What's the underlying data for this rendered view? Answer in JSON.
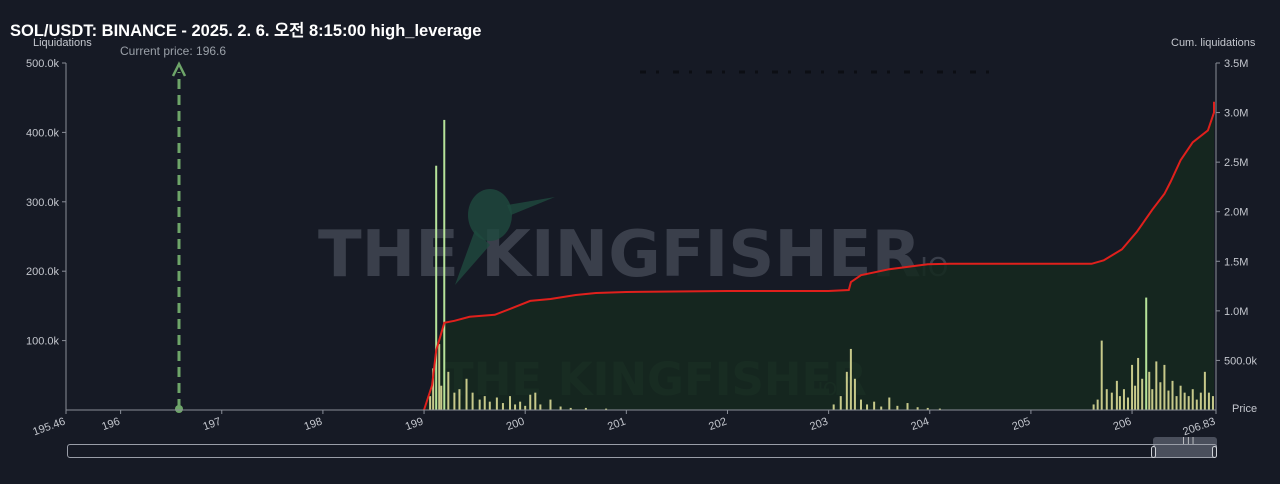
{
  "header": {
    "title": "SOL/USDT: BINANCE - 2025. 2. 6. 오전 8:15:00 high_leverage",
    "left_axis_title": "Liquidations",
    "right_axis_title": "Cum. liquidations",
    "current_price_label": "Current price: 196.6",
    "price_axis_label": "Price"
  },
  "watermark": {
    "text_main": "THE KINGFISHER",
    "text_suffix": ".IO",
    "icon": "kingfisher-bird-icon"
  },
  "colors": {
    "background": "#161a25",
    "cumulative_line": "#e0201c",
    "area_fill": "#15291e",
    "bar": "#c7c98a",
    "bar_highlight": "#b6e39a",
    "current_price": "#6ea569",
    "axis": "#8a8e98"
  },
  "chart_data": {
    "type": "bar",
    "x_axis": {
      "label": "Price",
      "range": [
        195.46,
        206.83
      ],
      "tick_labels": [
        "195.46",
        "196",
        "197",
        "198",
        "199",
        "200",
        "201",
        "202",
        "203",
        "204",
        "205",
        "206",
        "206.83"
      ]
    },
    "left_axis": {
      "label": "Liquidations",
      "range": [
        0,
        500000
      ],
      "tick_labels": [
        "100.0k",
        "200.0k",
        "300.0k",
        "400.0k",
        "500.0k"
      ]
    },
    "right_axis": {
      "label": "Cum. liquidations",
      "range": [
        0,
        3500000
      ],
      "tick_labels": [
        "500.0k",
        "1.0M",
        "1.5M",
        "2.0M",
        "2.5M",
        "3.0M",
        "3.5M"
      ]
    },
    "current_price": 196.6,
    "grid": false,
    "series": [
      {
        "name": "Liquidations",
        "kind": "bar",
        "points": [
          [
            199.06,
            20000
          ],
          [
            199.09,
            60000
          ],
          [
            199.12,
            352000
          ],
          [
            199.15,
            95000
          ],
          [
            199.17,
            35000
          ],
          [
            199.2,
            418000
          ],
          [
            199.24,
            55000
          ],
          [
            199.3,
            25000
          ],
          [
            199.35,
            30000
          ],
          [
            199.42,
            45000
          ],
          [
            199.48,
            25000
          ],
          [
            199.55,
            15000
          ],
          [
            199.6,
            20000
          ],
          [
            199.65,
            12000
          ],
          [
            199.72,
            18000
          ],
          [
            199.78,
            10000
          ],
          [
            199.85,
            20000
          ],
          [
            199.9,
            8000
          ],
          [
            199.95,
            12000
          ],
          [
            200.0,
            6000
          ],
          [
            200.05,
            22000
          ],
          [
            200.1,
            25000
          ],
          [
            200.15,
            8000
          ],
          [
            200.25,
            15000
          ],
          [
            200.35,
            5000
          ],
          [
            200.45,
            3000
          ],
          [
            200.6,
            3000
          ],
          [
            200.8,
            2000
          ],
          [
            203.05,
            8000
          ],
          [
            203.12,
            20000
          ],
          [
            203.18,
            55000
          ],
          [
            203.22,
            88000
          ],
          [
            203.26,
            45000
          ],
          [
            203.32,
            15000
          ],
          [
            203.38,
            8000
          ],
          [
            203.45,
            12000
          ],
          [
            203.52,
            5000
          ],
          [
            203.6,
            18000
          ],
          [
            203.68,
            6000
          ],
          [
            203.78,
            10000
          ],
          [
            203.88,
            4000
          ],
          [
            203.98,
            3000
          ],
          [
            204.1,
            2000
          ],
          [
            205.62,
            8000
          ],
          [
            205.66,
            15000
          ],
          [
            205.7,
            100000
          ],
          [
            205.75,
            30000
          ],
          [
            205.8,
            25000
          ],
          [
            205.85,
            42000
          ],
          [
            205.88,
            20000
          ],
          [
            205.92,
            30000
          ],
          [
            205.96,
            18000
          ],
          [
            206.0,
            65000
          ],
          [
            206.03,
            35000
          ],
          [
            206.06,
            75000
          ],
          [
            206.1,
            45000
          ],
          [
            206.14,
            162000
          ],
          [
            206.17,
            55000
          ],
          [
            206.2,
            30000
          ],
          [
            206.24,
            70000
          ],
          [
            206.28,
            40000
          ],
          [
            206.32,
            65000
          ],
          [
            206.36,
            28000
          ],
          [
            206.4,
            42000
          ],
          [
            206.44,
            20000
          ],
          [
            206.48,
            35000
          ],
          [
            206.52,
            25000
          ],
          [
            206.56,
            20000
          ],
          [
            206.6,
            30000
          ],
          [
            206.64,
            15000
          ],
          [
            206.68,
            25000
          ],
          [
            206.72,
            55000
          ],
          [
            206.76,
            25000
          ],
          [
            206.8,
            20000
          ]
        ]
      },
      {
        "name": "Cum. liquidations",
        "kind": "line",
        "points": [
          [
            199.0,
            0
          ],
          [
            199.08,
            250000
          ],
          [
            199.12,
            600000
          ],
          [
            199.2,
            880000
          ],
          [
            199.3,
            900000
          ],
          [
            199.45,
            940000
          ],
          [
            199.7,
            960000
          ],
          [
            199.85,
            1020000
          ],
          [
            200.05,
            1100000
          ],
          [
            200.25,
            1120000
          ],
          [
            200.5,
            1160000
          ],
          [
            200.7,
            1180000
          ],
          [
            201.0,
            1190000
          ],
          [
            202.0,
            1200000
          ],
          [
            203.0,
            1200000
          ],
          [
            203.2,
            1210000
          ],
          [
            203.22,
            1290000
          ],
          [
            203.32,
            1360000
          ],
          [
            203.6,
            1420000
          ],
          [
            203.98,
            1470000
          ],
          [
            204.2,
            1475000
          ],
          [
            205.6,
            1475000
          ],
          [
            205.72,
            1510000
          ],
          [
            205.9,
            1620000
          ],
          [
            206.05,
            1800000
          ],
          [
            206.2,
            2020000
          ],
          [
            206.32,
            2180000
          ],
          [
            206.38,
            2300000
          ],
          [
            206.48,
            2520000
          ],
          [
            206.6,
            2700000
          ],
          [
            206.75,
            2820000
          ],
          [
            206.9,
            3000000
          ],
          [
            207.0,
            3110000
          ]
        ]
      }
    ]
  }
}
